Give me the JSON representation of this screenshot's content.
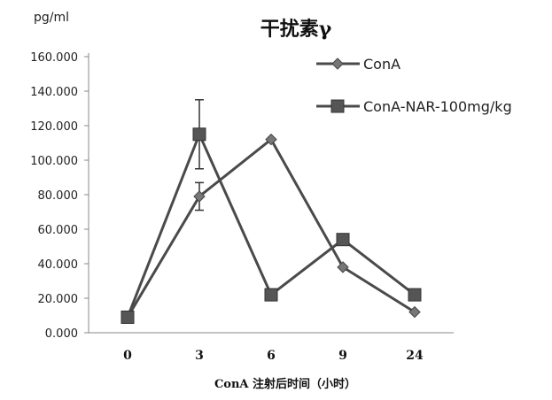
{
  "chart_data": {
    "type": "line",
    "title": "干扰素γ",
    "ylabel": "pg/ml",
    "xlabel": "ConA 注射后时间（小时）",
    "categories": [
      "0",
      "3",
      "6",
      "9",
      "24"
    ],
    "ylim": [
      0,
      160
    ],
    "y_ticks": [
      "0.000",
      "20.000",
      "40.000",
      "60.000",
      "80.000",
      "100.000",
      "120.000",
      "140.000",
      "160.000"
    ],
    "legend_position": "top-right",
    "series": [
      {
        "name": "ConA",
        "values": [
          9,
          79,
          112,
          38,
          12
        ],
        "error": [
          0,
          8,
          0,
          0,
          0
        ],
        "marker": "diamond",
        "color": "#4a4a4a"
      },
      {
        "name": "ConA-NAR-100mg/kg",
        "values": [
          9,
          115,
          22,
          54,
          22
        ],
        "error": [
          0,
          20,
          0,
          0,
          0
        ],
        "marker": "square",
        "color": "#4a4a4a"
      }
    ]
  }
}
